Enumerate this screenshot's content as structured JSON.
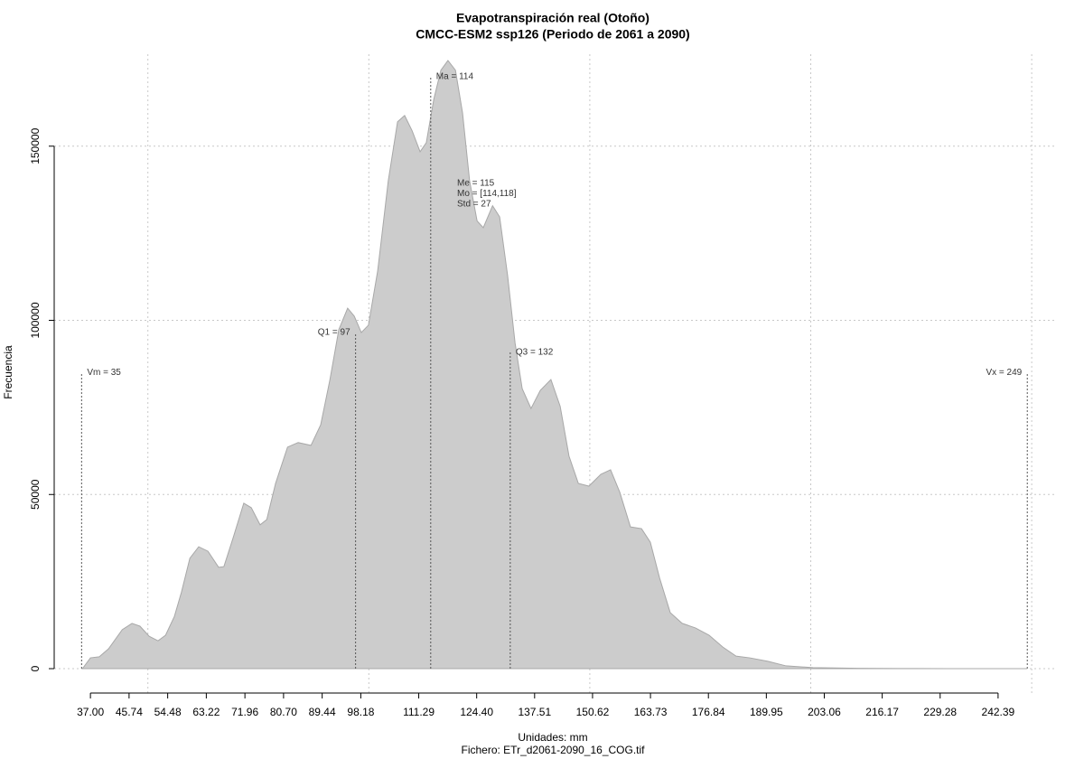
{
  "chart_data": {
    "type": "area",
    "title": "Evapotranspiración real (Otoño)",
    "subtitle": "CMCC-ESM2 ssp126 (Periodo de 2061 a 2090)",
    "xlabel": "Unidades: mm",
    "caption": "Fichero: ETr_d2061-2090_16_COG.tif",
    "ylabel": "Frecuencia",
    "color": "#cccccc",
    "x": [
      35.2,
      37,
      39,
      41.1,
      44.2,
      46.4,
      48.2,
      50.3,
      52.3,
      54,
      56,
      57.6,
      59.5,
      61.5,
      63.6,
      66,
      67.2,
      69.3,
      71.7,
      73.4,
      75.4,
      76.9,
      78.9,
      81.6,
      84,
      86.9,
      89.1,
      91.2,
      93.2,
      95.2,
      96.7,
      98.3,
      99.9,
      102,
      104.4,
      106.5,
      108.1,
      109.8,
      111.6,
      113,
      114.7,
      116.3,
      117.9,
      119.6,
      121.2,
      122.8,
      124.5,
      125.9,
      128,
      129.6,
      131.4,
      133.1,
      134.7,
      136.7,
      138.8,
      141.2,
      143.3,
      145.3,
      147.4,
      149.8,
      152.5,
      154.7,
      156.8,
      159.2,
      161.7,
      163.7,
      165.8,
      168.2,
      170.9,
      173.9,
      177,
      180.1,
      183.1,
      186.2,
      190.3,
      194.4,
      200.5,
      210.7,
      220.9,
      231.2,
      248.9
    ],
    "values": [
      0,
      3100,
      3400,
      5700,
      11200,
      13000,
      12200,
      9300,
      8000,
      9600,
      15000,
      22000,
      31700,
      35000,
      33700,
      29100,
      29300,
      37600,
      47500,
      46200,
      41300,
      42800,
      53200,
      63600,
      64900,
      64100,
      70000,
      83000,
      97300,
      103500,
      101200,
      96500,
      98600,
      114200,
      140100,
      157000,
      158800,
      154400,
      148400,
      151000,
      163500,
      171800,
      174600,
      171800,
      159600,
      140100,
      128500,
      126600,
      132900,
      129700,
      112900,
      93400,
      80400,
      74700,
      79900,
      83000,
      75300,
      61000,
      53200,
      52400,
      55800,
      57100,
      50600,
      40700,
      40200,
      36300,
      26000,
      16100,
      13000,
      11700,
      9600,
      6200,
      3600,
      3100,
      2100,
      800,
      300,
      100,
      50,
      20,
      0
    ],
    "xlim": [
      28.8,
      255.7
    ],
    "ylim": [
      -7000,
      176400
    ],
    "xticks": [
      {
        "value": 37,
        "label": "37.00"
      },
      45.74,
      54.48,
      63.22,
      71.96,
      {
        "value": 80.7,
        "label": "80.70"
      },
      89.44,
      98.18,
      111.29,
      {
        "value": 124.4,
        "label": "124.40"
      },
      137.51,
      150.62,
      163.73,
      176.84,
      189.95,
      203.06,
      216.17,
      229.28,
      242.39
    ],
    "xgrid": [
      50,
      100,
      150,
      200,
      250
    ],
    "yticks": [
      0,
      50000,
      100000,
      150000
    ],
    "grid": true,
    "markers": [
      {
        "label": "Vm = 35",
        "value": 35,
        "height": 85000
      },
      {
        "label": "Q1 = 97",
        "value": 97,
        "height": 96500
      },
      {
        "label": "Ma = 114",
        "value": 114,
        "height": 170000
      },
      {
        "label": "Q3 = 132",
        "value": 132,
        "height": 90800
      },
      {
        "label": "Vx = 249",
        "value": 249,
        "height": 85000
      }
    ],
    "stats": [
      "Me = 115",
      "Mo = [114,118]",
      "Std = 27"
    ]
  }
}
